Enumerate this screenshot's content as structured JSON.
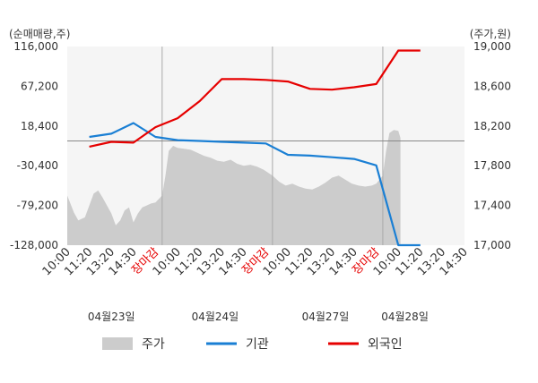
{
  "chart_data": {
    "type": "line",
    "title": "",
    "left_axis": {
      "unit_label": "(순매매량,주)",
      "ticks": [
        "116,000",
        "67,200",
        "18,400",
        "-30,400",
        "-79,200",
        "-128,000"
      ],
      "ylim": [
        -128000,
        116000
      ]
    },
    "right_axis": {
      "unit_label": "(주가,원)",
      "ticks": [
        "19,000",
        "18,600",
        "18,200",
        "17,800",
        "17,400",
        "17,000"
      ],
      "ylim": [
        17000,
        19000
      ]
    },
    "x_slots": [
      {
        "label": "10:00",
        "close": false
      },
      {
        "label": "11:20",
        "close": false
      },
      {
        "label": "13:20",
        "close": false
      },
      {
        "label": "14:30",
        "close": false
      },
      {
        "label": "장마감",
        "close": true
      },
      {
        "label": "10:00",
        "close": false
      },
      {
        "label": "11:20",
        "close": false
      },
      {
        "label": "13:20",
        "close": false
      },
      {
        "label": "14:30",
        "close": false
      },
      {
        "label": "장마감",
        "close": true
      },
      {
        "label": "10:00",
        "close": false
      },
      {
        "label": "11:20",
        "close": false
      },
      {
        "label": "13:20",
        "close": false
      },
      {
        "label": "14:30",
        "close": false
      },
      {
        "label": "장마감",
        "close": true
      },
      {
        "label": "10:00",
        "close": false
      },
      {
        "label": "11:20",
        "close": false
      },
      {
        "label": "13:20",
        "close": false
      },
      {
        "label": "14:30",
        "close": false
      }
    ],
    "dates": [
      {
        "label": "04월23일",
        "slot": 2
      },
      {
        "label": "04월24일",
        "slot": 6.7
      },
      {
        "label": "04월27일",
        "slot": 11.7
      },
      {
        "label": "04월28일",
        "slot": 15.3
      }
    ],
    "day_boundaries": [
      4.3,
      9.3,
      14.3
    ],
    "series": [
      {
        "name": "주가",
        "axis": "right",
        "kind": "area",
        "color": "#cccccc",
        "points": [
          [
            0,
            17500
          ],
          [
            0.3,
            17330
          ],
          [
            0.5,
            17250
          ],
          [
            0.8,
            17280
          ],
          [
            1,
            17400
          ],
          [
            1.2,
            17520
          ],
          [
            1.4,
            17550
          ],
          [
            1.6,
            17480
          ],
          [
            1.8,
            17400
          ],
          [
            2,
            17320
          ],
          [
            2.2,
            17200
          ],
          [
            2.4,
            17250
          ],
          [
            2.6,
            17350
          ],
          [
            2.8,
            17380
          ],
          [
            3,
            17230
          ],
          [
            3.2,
            17320
          ],
          [
            3.4,
            17380
          ],
          [
            3.6,
            17400
          ],
          [
            3.8,
            17420
          ],
          [
            4,
            17430
          ],
          [
            4.3,
            17500
          ],
          [
            4.45,
            17700
          ],
          [
            4.6,
            17950
          ],
          [
            4.8,
            18000
          ],
          [
            5.0,
            17980
          ],
          [
            5.3,
            17970
          ],
          [
            5.6,
            17960
          ],
          [
            5.9,
            17930
          ],
          [
            6.2,
            17900
          ],
          [
            6.5,
            17880
          ],
          [
            6.8,
            17850
          ],
          [
            7.1,
            17840
          ],
          [
            7.4,
            17860
          ],
          [
            7.7,
            17820
          ],
          [
            8.0,
            17800
          ],
          [
            8.3,
            17810
          ],
          [
            8.6,
            17790
          ],
          [
            8.9,
            17760
          ],
          [
            9.3,
            17700
          ],
          [
            9.6,
            17640
          ],
          [
            9.9,
            17600
          ],
          [
            10.2,
            17620
          ],
          [
            10.5,
            17590
          ],
          [
            10.8,
            17570
          ],
          [
            11.1,
            17560
          ],
          [
            11.4,
            17590
          ],
          [
            11.7,
            17630
          ],
          [
            12.0,
            17680
          ],
          [
            12.3,
            17700
          ],
          [
            12.6,
            17660
          ],
          [
            12.9,
            17620
          ],
          [
            13.2,
            17600
          ],
          [
            13.5,
            17590
          ],
          [
            13.8,
            17600
          ],
          [
            14.0,
            17620
          ],
          [
            14.3,
            17700
          ],
          [
            14.45,
            17950
          ],
          [
            14.6,
            18130
          ],
          [
            14.8,
            18160
          ],
          [
            15.0,
            18150
          ],
          [
            15.1,
            18080
          ]
        ]
      },
      {
        "name": "기관",
        "axis": "left",
        "kind": "line",
        "color": "#1a7fd4",
        "points": [
          [
            1,
            5000
          ],
          [
            2,
            9000
          ],
          [
            3,
            22000
          ],
          [
            4,
            5000
          ],
          [
            5,
            1000
          ],
          [
            6,
            0
          ],
          [
            7,
            -1000
          ],
          [
            8,
            -2000
          ],
          [
            9,
            -3000
          ],
          [
            10,
            -17000
          ],
          [
            11,
            -18000
          ],
          [
            12,
            -20000
          ],
          [
            13,
            -22000
          ],
          [
            14,
            -30000
          ],
          [
            15,
            -128000
          ],
          [
            16,
            -128000
          ]
        ]
      },
      {
        "name": "외국인",
        "axis": "left",
        "kind": "line",
        "color": "#e60000",
        "points": [
          [
            1,
            -7000
          ],
          [
            2,
            -1000
          ],
          [
            3,
            -2000
          ],
          [
            4,
            17000
          ],
          [
            5,
            28000
          ],
          [
            6,
            49000
          ],
          [
            7,
            76000
          ],
          [
            8,
            76000
          ],
          [
            9,
            75000
          ],
          [
            10,
            73000
          ],
          [
            11,
            64000
          ],
          [
            12,
            63000
          ],
          [
            13,
            66000
          ],
          [
            14,
            70000
          ],
          [
            15,
            111000
          ],
          [
            16,
            111000
          ]
        ]
      }
    ],
    "zero_line": 0,
    "grid": false,
    "legend_position": "bottom"
  }
}
